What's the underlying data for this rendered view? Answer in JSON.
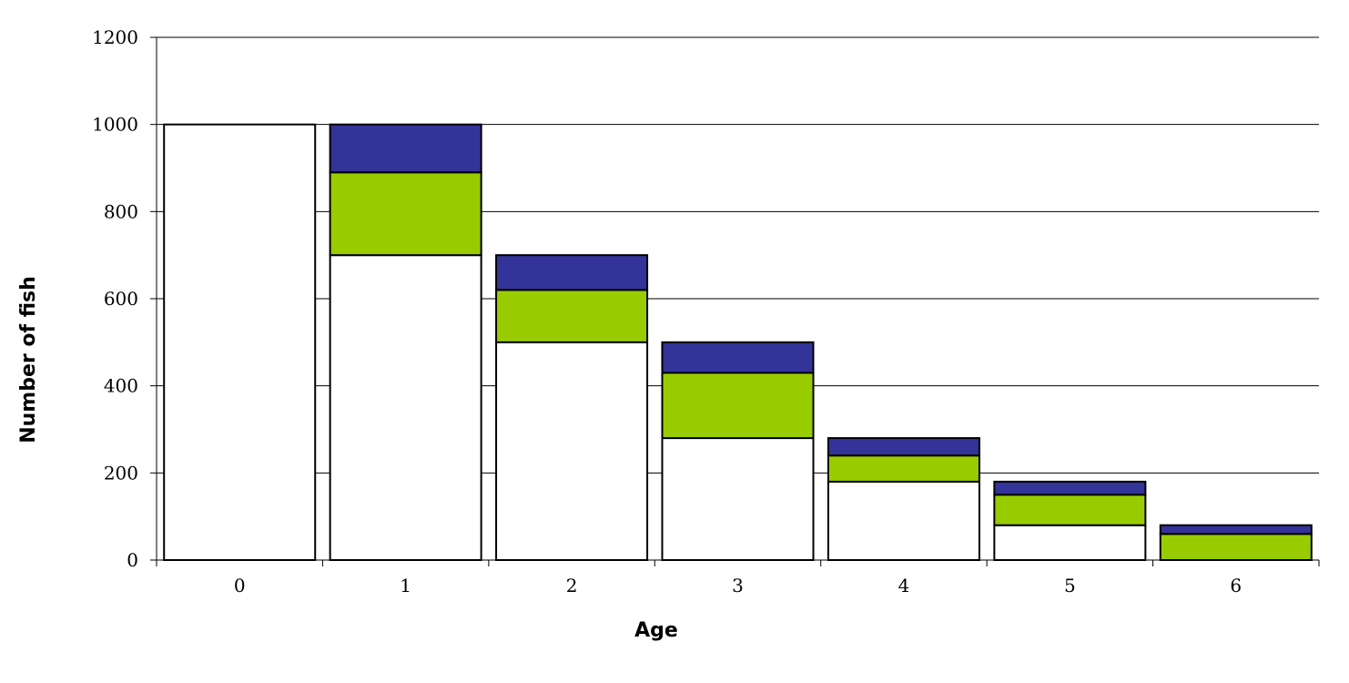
{
  "chart_data": {
    "type": "bar",
    "stacked": true,
    "title": "",
    "xlabel": "Age",
    "ylabel": "Number of fish",
    "categories": [
      "0",
      "1",
      "2",
      "3",
      "4",
      "5",
      "6"
    ],
    "series": [
      {
        "color": "#ffffff",
        "values": [
          1000,
          700,
          500,
          280,
          180,
          80,
          0
        ]
      },
      {
        "color": "#99cc00",
        "values": [
          0,
          190,
          120,
          150,
          60,
          70,
          60
        ]
      },
      {
        "color": "#333399",
        "values": [
          0,
          110,
          80,
          70,
          40,
          30,
          20
        ]
      }
    ],
    "ylim": [
      0,
      1200
    ],
    "yticks": [
      "0",
      "200",
      "400",
      "600",
      "800",
      "1000",
      "1200"
    ],
    "grid": true,
    "legend": "none"
  }
}
